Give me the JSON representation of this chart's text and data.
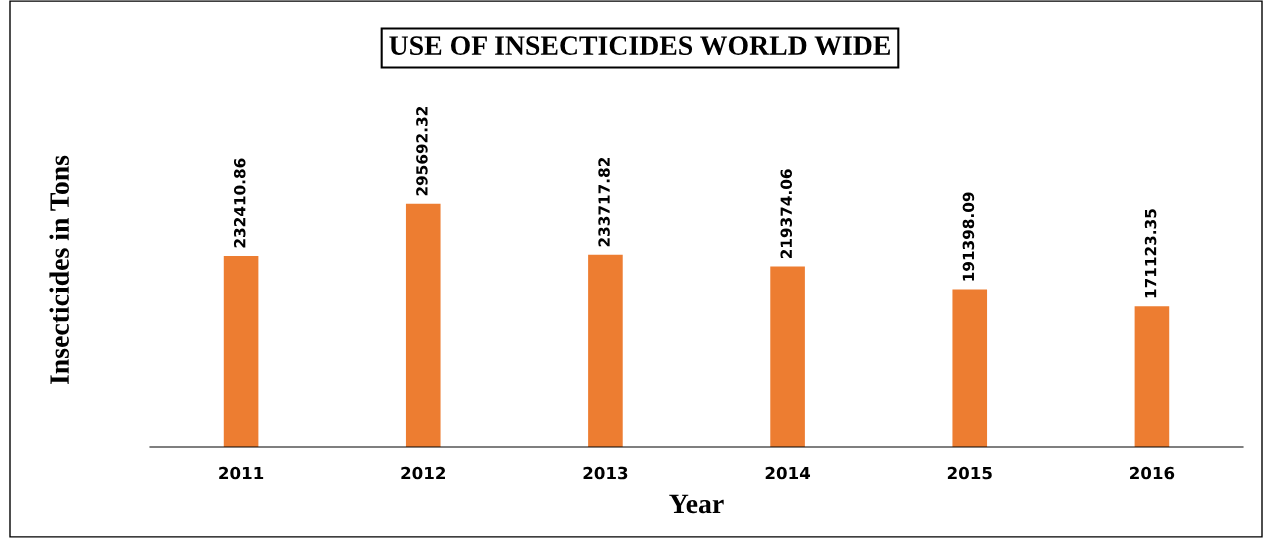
{
  "chart_data": {
    "type": "bar",
    "title": "USE OF INSECTICIDES WORLD WIDE",
    "xlabel": "Year",
    "ylabel": "Insecticides in Tons",
    "categories": [
      "2011",
      "2012",
      "2013",
      "2014",
      "2015",
      "2016"
    ],
    "values": [
      232410.86,
      295692.32,
      233717.82,
      219374.06,
      191398.09,
      171123.35
    ],
    "value_labels": [
      "232410.86",
      "295692.32",
      "233717.82",
      "219374.06",
      "191398.09",
      "171123.35"
    ],
    "color": "#ed7d31",
    "grid": false,
    "legend": false
  }
}
